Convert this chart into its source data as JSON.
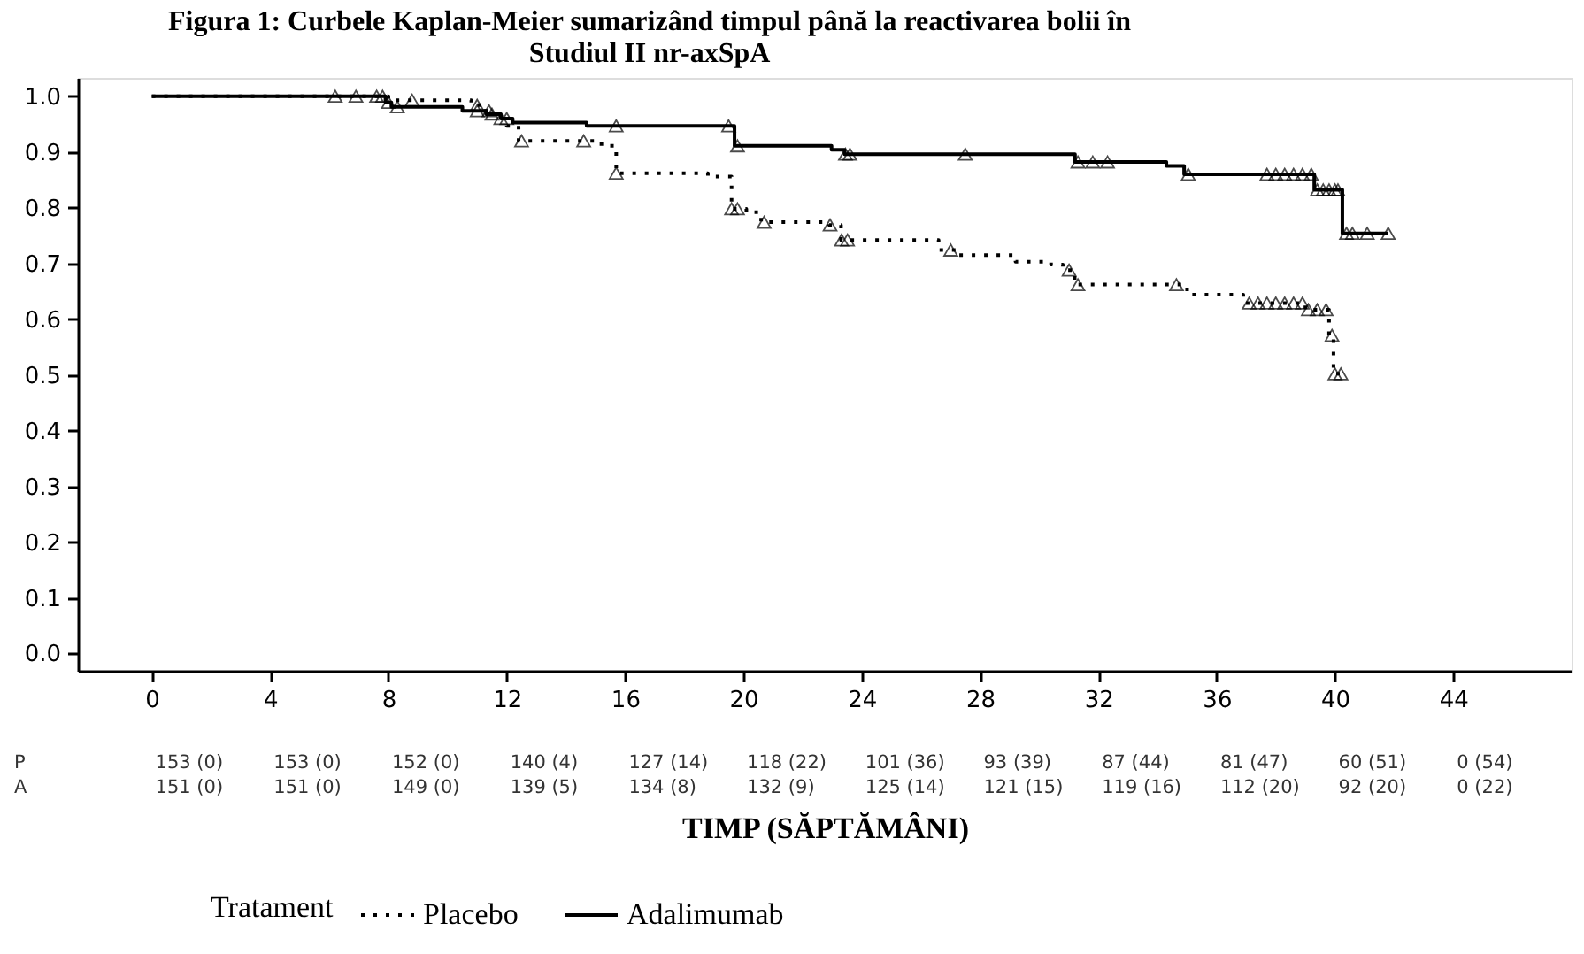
{
  "chart_data": {
    "type": "step",
    "title": "Figura 1: Curbele Kaplan-Meier sumarizând timpul până la reactivarea bolii în\nStudiul II nr-axSpA",
    "xlabel": "TIMP (SĂPTĂMÂNI)",
    "legend_title": "Tratament",
    "legend": "bottom",
    "xlim": [
      -2.5,
      48
    ],
    "ylim": [
      -0.031,
      1.033
    ],
    "xticks": [
      0,
      4,
      8,
      12,
      16,
      20,
      24,
      28,
      32,
      36,
      40,
      44
    ],
    "yticks": [
      {
        "value": 0,
        "label": "0.0"
      },
      {
        "value": 0.1,
        "label": "0.1"
      },
      {
        "value": 0.2,
        "label": "0.2"
      },
      {
        "value": 0.3,
        "label": "0.3"
      },
      {
        "value": 0.4,
        "label": "0.4"
      },
      {
        "value": 0.5,
        "label": "0.5"
      },
      {
        "value": 0.6,
        "label": "0.6"
      },
      {
        "value": 0.7,
        "label": "0.7"
      },
      {
        "value": 0.8,
        "label": "0.8"
      },
      {
        "value": 0.9,
        "label": "0.9"
      },
      {
        "value": 1,
        "label": "1.0"
      }
    ],
    "series": [
      {
        "name": "Placebo",
        "color": "#000000",
        "line_style": "dotted",
        "x": [
          0,
          8.0,
          10.8,
          11.2,
          11.6,
          12.0,
          12.4,
          15.2,
          15.7,
          18.8,
          19.6,
          20.1,
          20.6,
          22.9,
          23.3,
          26.6,
          27.2,
          29.2,
          30.4,
          30.8,
          31.2,
          35.0,
          36.9,
          39.0,
          39.8,
          39.95,
          40.4
        ],
        "values": [
          1.0,
          0.993,
          0.984,
          0.974,
          0.96,
          0.947,
          0.92,
          0.911,
          0.862,
          0.856,
          0.798,
          0.792,
          0.774,
          0.769,
          0.742,
          0.724,
          0.715,
          0.703,
          0.698,
          0.688,
          0.662,
          0.644,
          0.629,
          0.617,
          0.571,
          0.502,
          0.502
        ]
      },
      {
        "name": "Adalimumab",
        "color": "#000000",
        "line_style": "solid",
        "x": [
          0,
          7.9,
          8.1,
          10.5,
          11.3,
          11.8,
          12.2,
          14.7,
          19.7,
          22.98,
          23.42,
          31.21,
          34.3,
          34.9,
          39.3,
          40.25,
          41.8
        ],
        "values": [
          1.0,
          0.989,
          0.981,
          0.974,
          0.968,
          0.96,
          0.953,
          0.947,
          0.911,
          0.904,
          0.896,
          0.882,
          0.875,
          0.86,
          0.832,
          0.754,
          0.754
        ]
      },
      {
        "type": "scatter",
        "color": "#000000",
        "marker": "triangle",
        "x": [
          8.8,
          11.0,
          11.4,
          11.8,
          12.5,
          14.6,
          15.7,
          19.6,
          19.8,
          20.7,
          22.93,
          23.32,
          23.52,
          27.01,
          31.01,
          31.31,
          34.64,
          37.1,
          37.4,
          37.7,
          38.0,
          38.3,
          38.6,
          38.9,
          39.1,
          39.4,
          39.7,
          39.9,
          40.0,
          40.2
        ],
        "values": [
          0.993,
          0.984,
          0.974,
          0.96,
          0.92,
          0.92,
          0.862,
          0.798,
          0.798,
          0.774,
          0.769,
          0.742,
          0.742,
          0.724,
          0.688,
          0.662,
          0.662,
          0.629,
          0.629,
          0.629,
          0.629,
          0.629,
          0.629,
          0.629,
          0.617,
          0.617,
          0.617,
          0.571,
          0.502,
          0.502
        ]
      },
      {
        "type": "scatter",
        "color": "#000000",
        "marker": "triangle",
        "x": [
          6.2,
          6.9,
          7.6,
          7.8,
          8.0,
          8.3,
          11.0,
          11.5,
          12.0,
          15.7,
          19.5,
          19.8,
          23.45,
          23.6,
          27.5,
          31.31,
          31.81,
          32.31,
          35.04,
          37.7,
          38.0,
          38.3,
          38.6,
          38.9,
          39.2,
          39.4,
          39.6,
          39.8,
          40.0,
          40.1,
          40.39,
          40.59,
          41.09,
          41.8
        ],
        "values": [
          1.0,
          1.0,
          1.0,
          1.0,
          0.989,
          0.981,
          0.974,
          0.968,
          0.96,
          0.947,
          0.947,
          0.911,
          0.896,
          0.896,
          0.896,
          0.882,
          0.882,
          0.882,
          0.86,
          0.86,
          0.86,
          0.86,
          0.86,
          0.86,
          0.86,
          0.832,
          0.832,
          0.832,
          0.832,
          0.832,
          0.754,
          0.754,
          0.754,
          0.754
        ]
      }
    ],
    "annotations": [
      "P",
      "153 (0)",
      "153 (0)",
      "152 (0)",
      "140 (4)",
      "127 (14)",
      "118 (22)",
      "101 (36)",
      "93 (39)",
      "87 (44)",
      "81 (47)",
      "60 (51)",
      "0 (54)",
      "A",
      "151 (0)",
      "151 (0)",
      "149 (0)",
      "139 (5)",
      "134 (8)",
      "132 (9)",
      "125 (14)",
      "121 (15)",
      "119 (16)",
      "112 (20)",
      "92 (20)",
      "0 (22)"
    ]
  }
}
